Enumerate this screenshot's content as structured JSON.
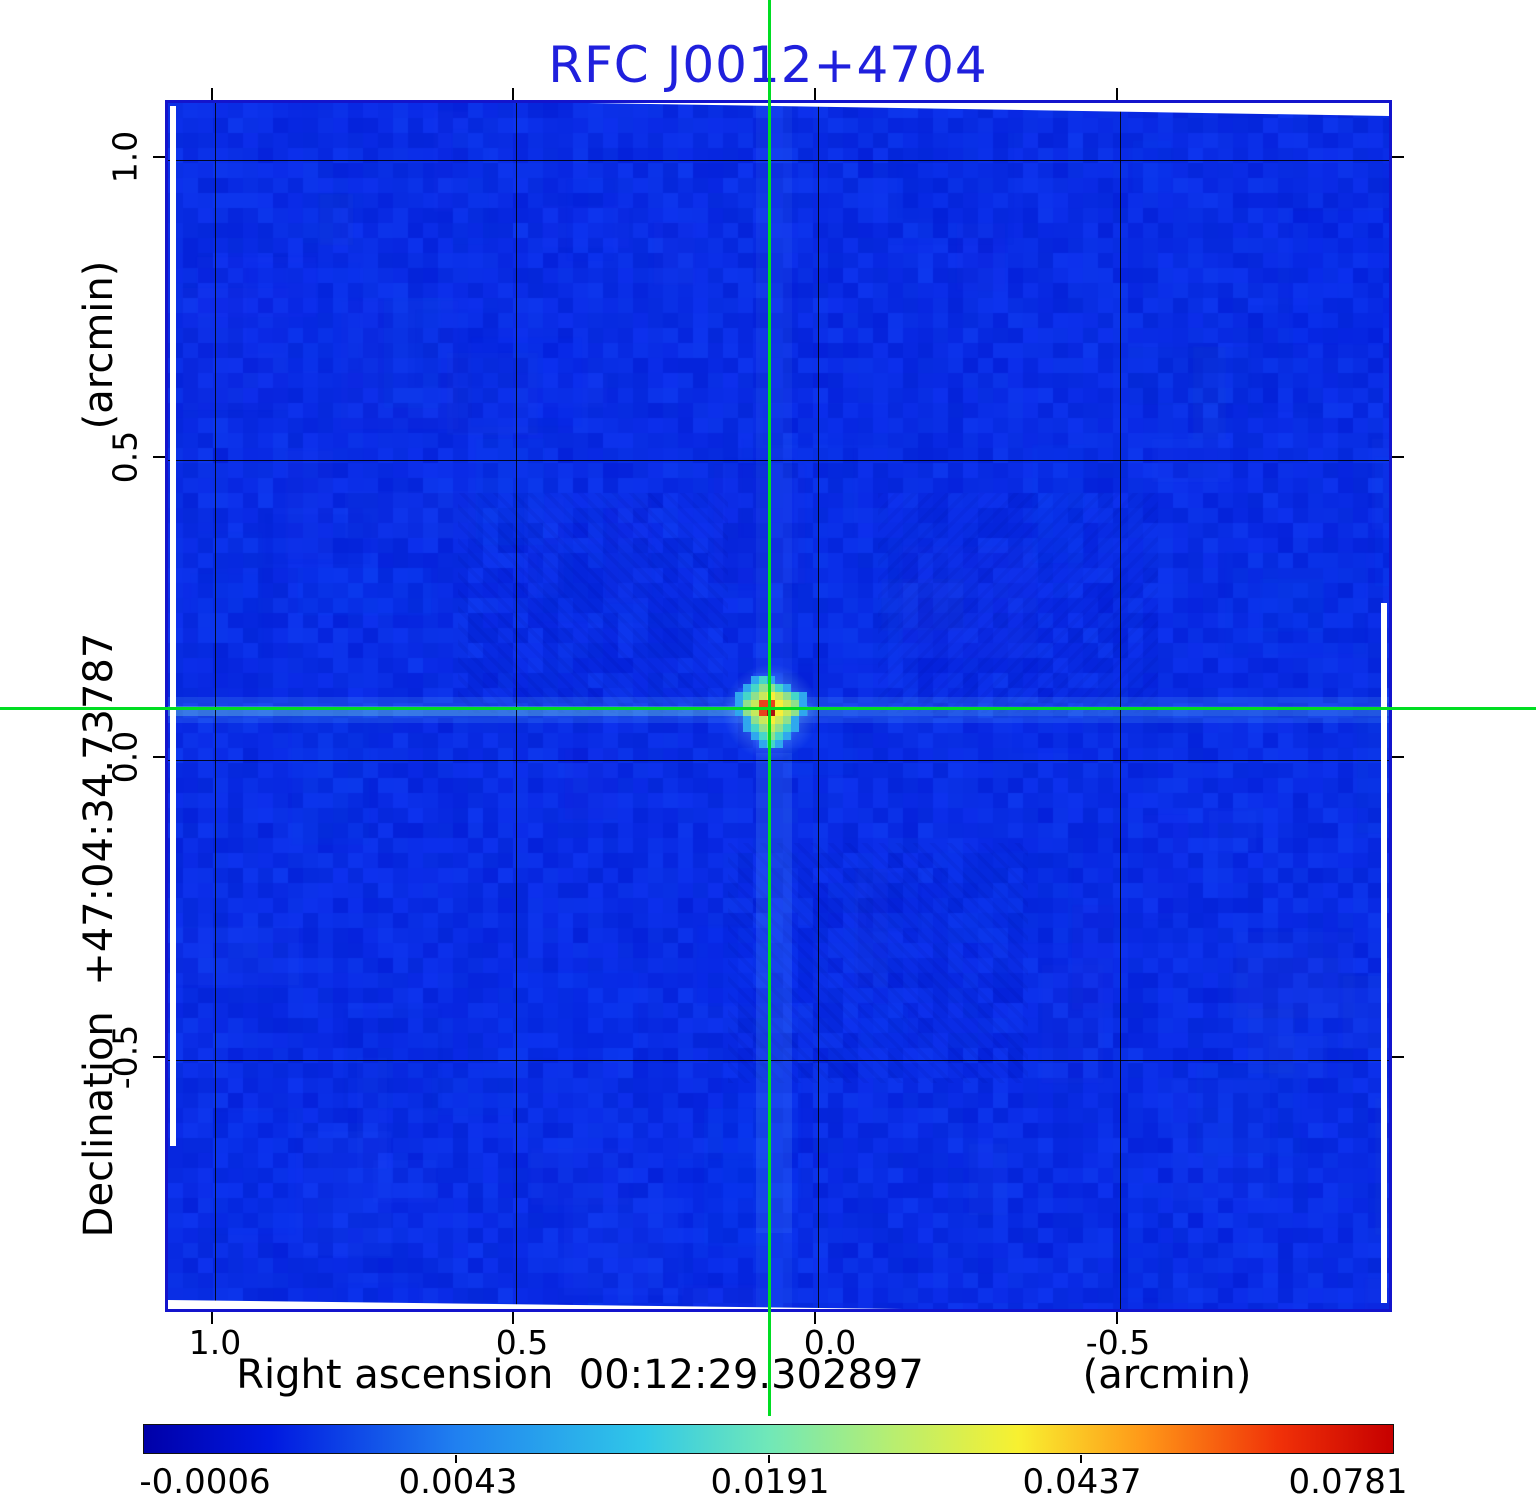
{
  "title": {
    "text": "RFC J0012+4704",
    "color": "#2020dd"
  },
  "y_axis": {
    "label": "Declination  +47:04:34.73787",
    "unit": "(arcmin)",
    "ticks": [
      "1.0",
      "0.5",
      "0.0",
      "-0.5"
    ]
  },
  "x_axis": {
    "label": "Right ascension  00:12:29.302897",
    "unit": "(arcmin)",
    "ticks": [
      "1.0",
      "0.5",
      "0.0",
      "-0.5"
    ]
  },
  "colorbar": {
    "labels": [
      "-0.0006",
      "0.0043",
      "0.0191",
      "0.0437",
      "0.0781"
    ],
    "gradient": [
      "#0000a8 0%",
      "#0018e0 10%",
      "#2080f0 25%",
      "#30c8e8 40%",
      "#70e8b8 50%",
      "#b8ee70 60%",
      "#f8f030 70%",
      "#ff9818 80%",
      "#f03008 91%",
      "#c60000 100%"
    ]
  },
  "chart_data": {
    "type": "heatmap",
    "title": "RFC J0012+4704",
    "xlabel": "Right ascension 00:12:29.302897 (arcmin)",
    "ylabel": "Declination +47:04:34.73787 (arcmin)",
    "x_tick_values": [
      1.0,
      0.5,
      0.0,
      -0.5
    ],
    "y_tick_values": [
      1.0,
      0.5,
      0.0,
      -0.5
    ],
    "x_range_arcmin": [
      1.08,
      -0.96
    ],
    "y_range_arcmin": [
      -0.93,
      1.1
    ],
    "colorbar_tick_values": [
      -0.0006,
      0.0043,
      0.0191,
      0.0437,
      0.0781
    ],
    "source": {
      "ra_label": "00:12:29.302897",
      "dec_label": "+47:04:34.73787",
      "x_arcmin": 0.075,
      "y_arcmin": 0.08,
      "peak_value": 0.0781
    },
    "crosshair_color": "#00dd22",
    "background_level_range": [
      -0.0006,
      0.0043
    ],
    "description": "VLBI radio continuum image: single compact source at the phase center marked by a green crosshair on a blue noise background"
  },
  "render": {
    "noise": {
      "cell": 15,
      "base": [
        9,
        44,
        228
      ],
      "seed": 77
    },
    "palette": {
      "c": "#2fa8ee",
      "t": "#45d6c8",
      "g": "#8fe08c",
      "u": "#c6e95c",
      "y": "#f8ef38",
      "r": "#e8431c",
      "d": "#a81010"
    },
    "source_pixels": [
      "..ctc....",
      ".ctggtc..",
      "ctguyugtc",
      "cgurryugc",
      "cgurdyugc",
      ".cguyugc.",
      ".ctgugtc.",
      "..ctgtc..",
      "...ctc..."
    ]
  }
}
